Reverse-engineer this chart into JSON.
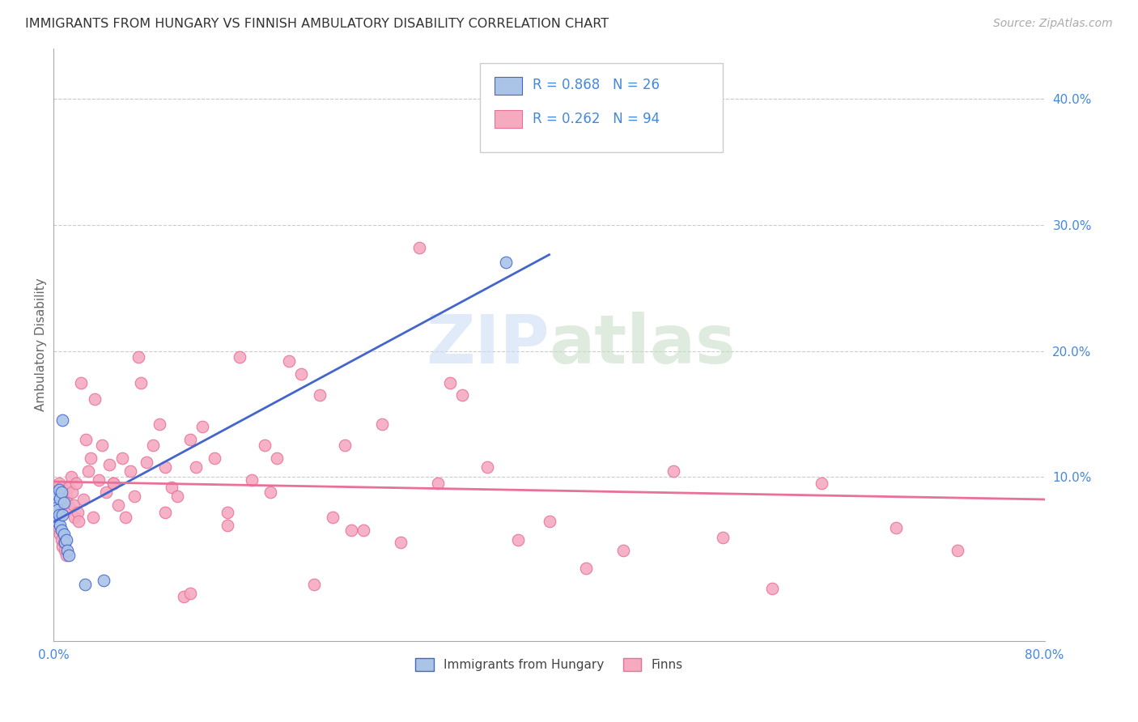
{
  "title": "IMMIGRANTS FROM HUNGARY VS FINNISH AMBULATORY DISABILITY CORRELATION CHART",
  "source": "Source: ZipAtlas.com",
  "ylabel": "Ambulatory Disability",
  "xlim": [
    0.0,
    0.8
  ],
  "ylim": [
    -0.03,
    0.44
  ],
  "legend_r1": "R = 0.868",
  "legend_n1": "N = 26",
  "legend_r2": "R = 0.262",
  "legend_n2": "N = 94",
  "color_hungary": "#aac4e8",
  "color_finns": "#f5aac0",
  "color_hungary_line": "#4466cc",
  "color_finns_line": "#e87099",
  "color_text_blue": "#4488dd",
  "hungary_x": [
    0.0005,
    0.001,
    0.001,
    0.002,
    0.002,
    0.002,
    0.003,
    0.003,
    0.003,
    0.004,
    0.004,
    0.005,
    0.005,
    0.006,
    0.006,
    0.007,
    0.007,
    0.008,
    0.008,
    0.009,
    0.01,
    0.011,
    0.012,
    0.025,
    0.04,
    0.365
  ],
  "hungary_y": [
    0.078,
    0.082,
    0.072,
    0.088,
    0.068,
    0.076,
    0.086,
    0.074,
    0.065,
    0.09,
    0.07,
    0.083,
    0.062,
    0.088,
    0.058,
    0.145,
    0.07,
    0.055,
    0.08,
    0.048,
    0.05,
    0.042,
    0.038,
    0.015,
    0.018,
    0.27
  ],
  "finns_x": [
    0.001,
    0.002,
    0.002,
    0.003,
    0.003,
    0.004,
    0.004,
    0.005,
    0.005,
    0.006,
    0.006,
    0.007,
    0.007,
    0.008,
    0.008,
    0.009,
    0.009,
    0.01,
    0.01,
    0.011,
    0.012,
    0.013,
    0.014,
    0.015,
    0.016,
    0.017,
    0.018,
    0.019,
    0.02,
    0.022,
    0.024,
    0.026,
    0.028,
    0.03,
    0.033,
    0.036,
    0.039,
    0.042,
    0.045,
    0.048,
    0.052,
    0.055,
    0.058,
    0.062,
    0.065,
    0.07,
    0.075,
    0.08,
    0.085,
    0.09,
    0.095,
    0.1,
    0.105,
    0.11,
    0.115,
    0.12,
    0.13,
    0.14,
    0.15,
    0.16,
    0.17,
    0.18,
    0.19,
    0.2,
    0.215,
    0.225,
    0.235,
    0.25,
    0.265,
    0.28,
    0.295,
    0.31,
    0.33,
    0.35,
    0.375,
    0.4,
    0.43,
    0.46,
    0.5,
    0.54,
    0.58,
    0.62,
    0.68,
    0.73,
    0.032,
    0.068,
    0.11,
    0.175,
    0.24,
    0.32,
    0.048,
    0.09,
    0.14,
    0.21
  ],
  "finns_y": [
    0.08,
    0.085,
    0.072,
    0.09,
    0.065,
    0.095,
    0.06,
    0.088,
    0.055,
    0.092,
    0.05,
    0.075,
    0.045,
    0.082,
    0.048,
    0.078,
    0.042,
    0.085,
    0.038,
    0.08,
    0.092,
    0.075,
    0.1,
    0.088,
    0.078,
    0.068,
    0.095,
    0.072,
    0.065,
    0.175,
    0.082,
    0.13,
    0.105,
    0.115,
    0.162,
    0.098,
    0.125,
    0.088,
    0.11,
    0.095,
    0.078,
    0.115,
    0.068,
    0.105,
    0.085,
    0.175,
    0.112,
    0.125,
    0.142,
    0.108,
    0.092,
    0.085,
    0.005,
    0.008,
    0.108,
    0.14,
    0.115,
    0.072,
    0.195,
    0.098,
    0.125,
    0.115,
    0.192,
    0.182,
    0.165,
    0.068,
    0.125,
    0.058,
    0.142,
    0.048,
    0.282,
    0.095,
    0.165,
    0.108,
    0.05,
    0.065,
    0.028,
    0.042,
    0.105,
    0.052,
    0.012,
    0.095,
    0.06,
    0.042,
    0.068,
    0.195,
    0.13,
    0.088,
    0.058,
    0.175,
    0.095,
    0.072,
    0.062,
    0.015
  ]
}
